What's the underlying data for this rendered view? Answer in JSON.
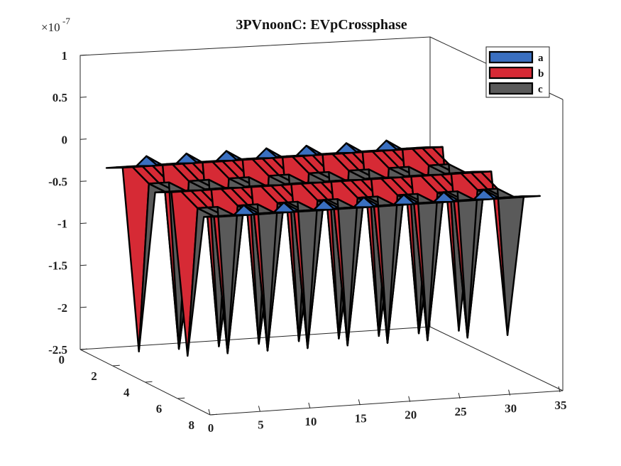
{
  "chart_data": {
    "type": "surface3d",
    "title": "3PVnoonC: EVpCrossphase",
    "z_exponent": "-7",
    "z_multiplier_prefix": "×10",
    "x_ticks": [
      "0",
      "5",
      "10",
      "15",
      "20",
      "25",
      "30",
      "35"
    ],
    "y_ticks": [
      "0",
      "2",
      "4",
      "6",
      "8"
    ],
    "z_ticks": [
      "1",
      "0.5",
      "0",
      "-0.5",
      "-1",
      "-1.5",
      "-2",
      "-2.5"
    ],
    "xlim": [
      0,
      35
    ],
    "ylim": [
      0,
      8
    ],
    "zlim": [
      -2.5,
      1
    ],
    "legend_position": "top-right",
    "grid": false,
    "series": [
      {
        "name": "a",
        "color": "#3a6fc0",
        "dip": -0.15,
        "peak_x": [
          5,
          9,
          13,
          17,
          21,
          25,
          29
        ],
        "peak": 0.35
      },
      {
        "name": "b",
        "color": "#d62a35",
        "dip": -0.05,
        "peak_x": [],
        "peak": 0
      },
      {
        "name": "c",
        "color": "#5a5a5a",
        "dip_x": [
          1,
          5,
          9,
          13,
          17,
          21,
          25,
          29,
          33
        ],
        "dip": -2.4
      }
    ],
    "surface_base_z": -0.1
  }
}
